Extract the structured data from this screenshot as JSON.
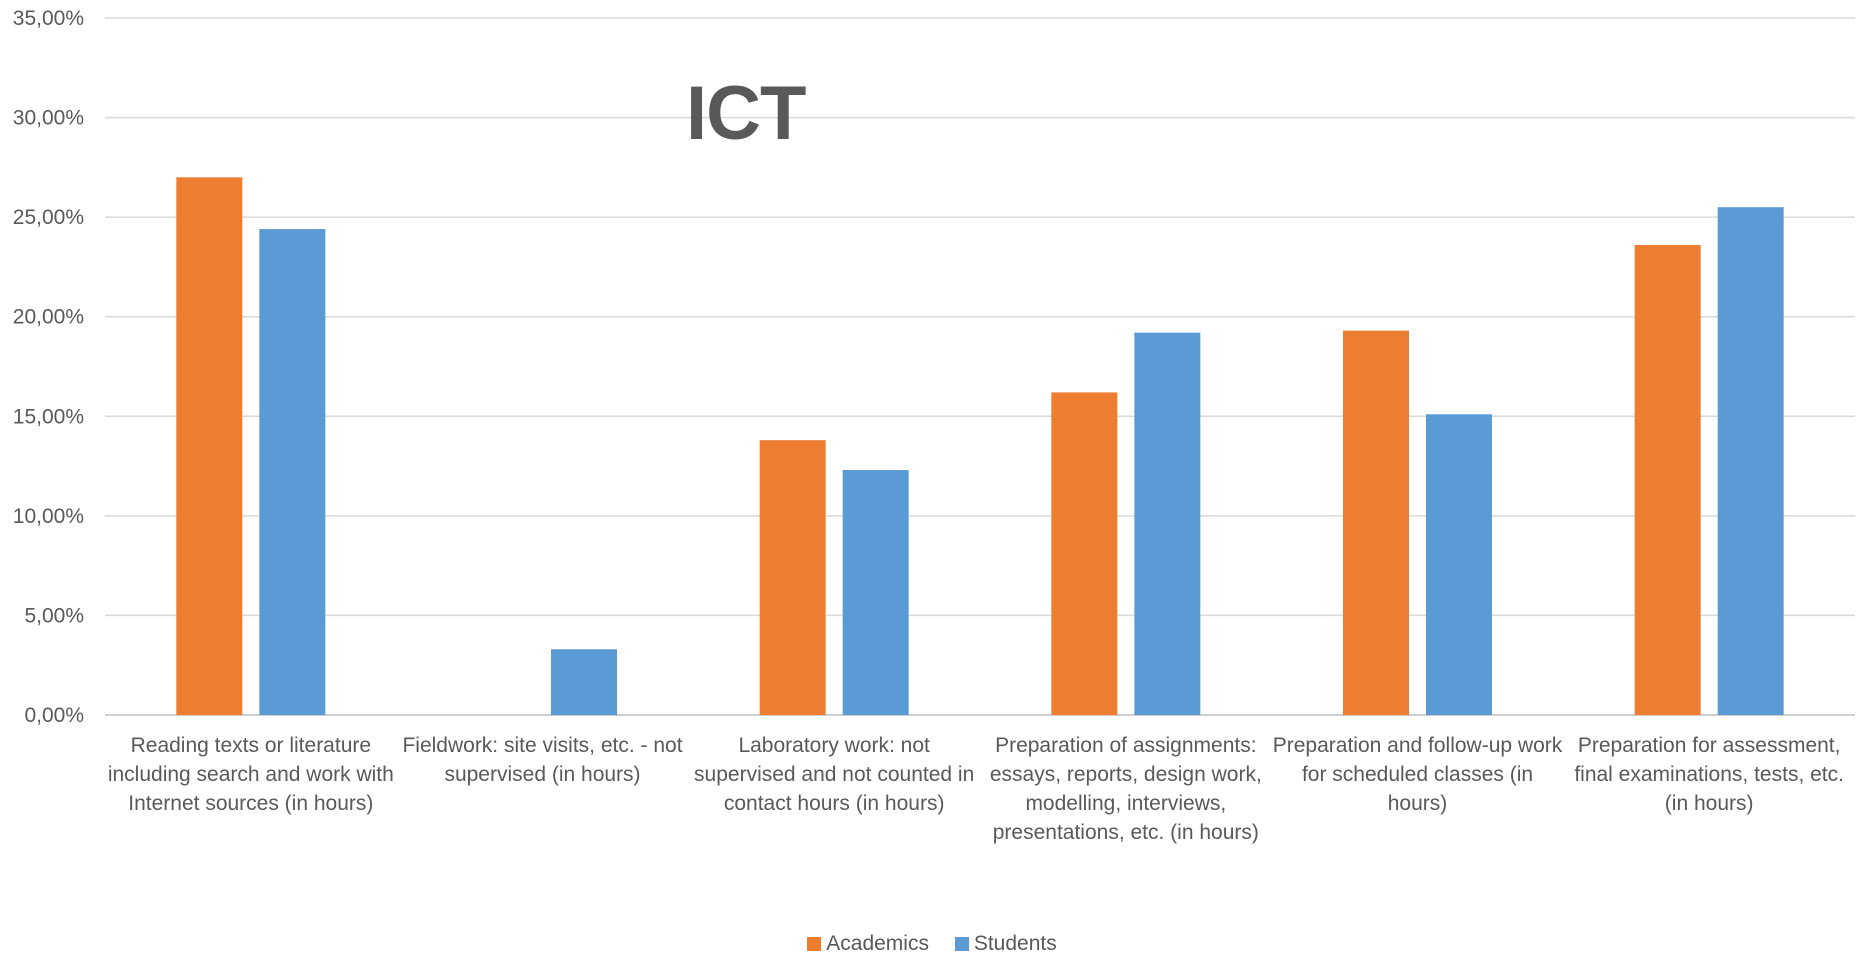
{
  "chart_data": {
    "type": "bar",
    "title": "ICT",
    "xlabel": "",
    "ylabel": "",
    "ylim": [
      0,
      35
    ],
    "grid": true,
    "legend_position": "bottom",
    "y_ticks": [
      "0,00%",
      "5,00%",
      "10,00%",
      "15,00%",
      "20,00%",
      "25,00%",
      "30,00%",
      "35,00%"
    ],
    "categories": [
      "Reading texts or literature including search and work with Internet sources (in hours)",
      "Fieldwork: site visits, etc. - not supervised (in hours)",
      "Laboratory work: not supervised and not counted in contact hours (in hours)",
      "Preparation of assignments: essays, reports, design work, modelling, interviews, presentations, etc. (in hours)",
      "Preparation and follow-up work for scheduled classes (in hours)",
      "Preparation for assessment, final examinations, tests, etc. (in hours)"
    ],
    "series": [
      {
        "name": "Academics",
        "color": "#ED7D31",
        "values": [
          27.0,
          0.0,
          13.8,
          16.2,
          19.3,
          23.6
        ]
      },
      {
        "name": "Students",
        "color": "#5B9BD5",
        "values": [
          24.4,
          3.3,
          12.3,
          19.2,
          15.1,
          25.5
        ]
      }
    ]
  }
}
